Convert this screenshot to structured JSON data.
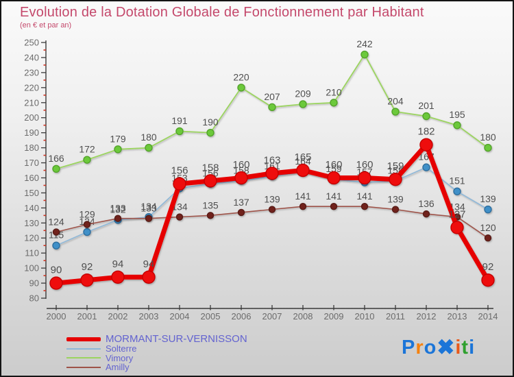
{
  "title": "Evolution de la Dotation Globale de Fonctionnement par Habitant",
  "subtitle": "(en € et par an)",
  "title_color": "#c4486b",
  "axis_color": "#3a3a3a",
  "tick_label_color": "#6b6b6b",
  "minor_tick_color": "#cc3322",
  "data_label_color": "#4f4f4f",
  "legend_text_color": "#6363d0",
  "chart_data": {
    "type": "line",
    "x": [
      2000,
      2001,
      2002,
      2003,
      2004,
      2005,
      2006,
      2007,
      2008,
      2009,
      2010,
      2011,
      2012,
      2013,
      2014
    ],
    "series": [
      {
        "name": "Solterre",
        "values": [
          115,
          124,
          132,
          134,
          153,
          156,
          158,
          161,
          164,
          159,
          157,
          158,
          167,
          151,
          139
        ],
        "line_color": "#8fb8d8",
        "line_width": 1.6,
        "dot_color": "#4090c8",
        "dot_stroke": "#2f6e9e",
        "dot_radius": 5,
        "label_size": 14
      },
      {
        "name": "Vimory",
        "values": [
          166,
          172,
          179,
          180,
          191,
          190,
          220,
          207,
          209,
          210,
          242,
          204,
          201,
          195,
          180
        ],
        "line_color": "#9bd45f",
        "line_width": 1.8,
        "dot_color": "#6cc93b",
        "dot_stroke": "#53a32c",
        "dot_radius": 5,
        "label_size": 14
      },
      {
        "name": "Amilly",
        "values": [
          124,
          129,
          133,
          133,
          134,
          135,
          137,
          139,
          141,
          141,
          141,
          139,
          136,
          134,
          120
        ],
        "line_color": "#9e5248",
        "line_width": 1.6,
        "dot_color": "#71241e",
        "dot_stroke": "#571a15",
        "dot_radius": 4.5,
        "label_size": 14
      },
      {
        "name": "MORMANT-SUR-VERNISSON",
        "values": [
          90,
          92,
          94,
          94,
          156,
          158,
          160,
          163,
          165,
          160,
          160,
          159,
          182,
          127,
          92
        ],
        "line_color": "#e60000",
        "line_width": 7,
        "dot_color": "#ee1111",
        "dot_stroke": "#c40000",
        "dot_radius": 9,
        "label_size": 15
      },
      {
        "name": "_legend_order",
        "values": []
      }
    ],
    "legend_order": [
      3,
      0,
      1,
      2
    ],
    "ylim": [
      80,
      250
    ],
    "ytick_step": 10,
    "yminor_step": 5,
    "grid": false,
    "legend_position": "bottom-left"
  },
  "logo": {
    "text": "Proxiti",
    "letters": [
      {
        "char": "P",
        "color": "#1b75d8"
      },
      {
        "char": "r",
        "color": "#f5820e"
      },
      {
        "char": "o",
        "color": "#1b75d8"
      },
      {
        "char": "✖",
        "color": "#1b75d8"
      },
      {
        "char": "i",
        "color": "#e8591a"
      },
      {
        "char": "t",
        "color": "#2fa02f"
      },
      {
        "char": "i",
        "color": "#1b75d8"
      }
    ]
  }
}
